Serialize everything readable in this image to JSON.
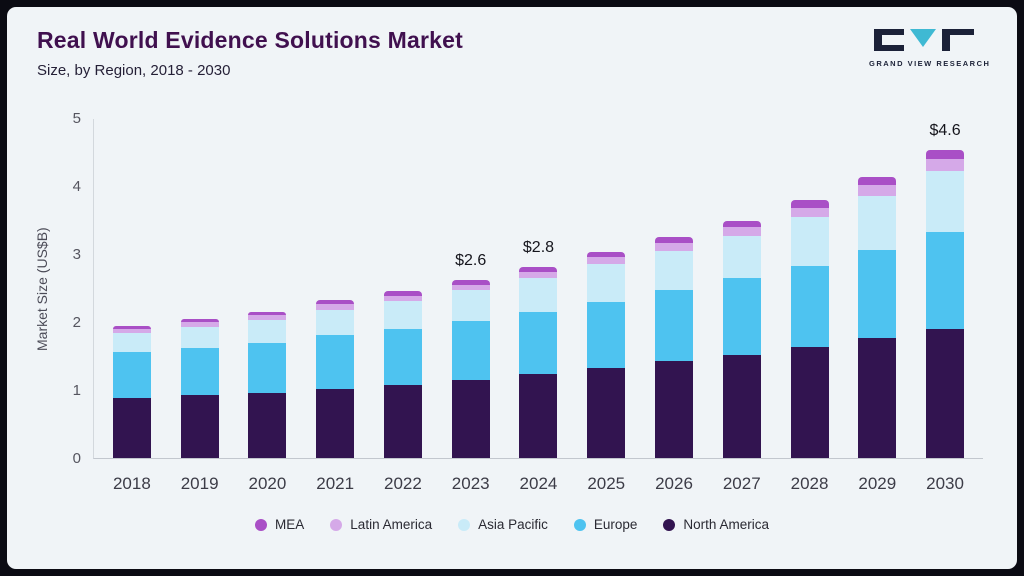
{
  "header": {
    "title": "Real World Evidence Solutions Market",
    "subtitle": "Size, by Region, 2018 - 2030",
    "logo_text": "GRAND VIEW RESEARCH"
  },
  "chart_data": {
    "type": "bar",
    "stacked": true,
    "title": "Real World Evidence Solutions Market Size, by Region, 2018 - 2030",
    "xlabel": "",
    "ylabel": "Market Size (US$B)",
    "ylim": [
      0,
      5
    ],
    "yticks": [
      0,
      1,
      2,
      3,
      4,
      5
    ],
    "grid": false,
    "legend_position": "bottom",
    "categories": [
      "2018",
      "2019",
      "2020",
      "2021",
      "2022",
      "2023",
      "2024",
      "2025",
      "2026",
      "2027",
      "2028",
      "2029",
      "2030"
    ],
    "series": [
      {
        "name": "North America",
        "color": "#321450",
        "values": [
          0.88,
          0.92,
          0.96,
          1.02,
          1.08,
          1.15,
          1.23,
          1.32,
          1.42,
          1.52,
          1.63,
          1.76,
          1.9
        ]
      },
      {
        "name": "Europe",
        "color": "#4EC3F0",
        "values": [
          0.68,
          0.7,
          0.73,
          0.79,
          0.82,
          0.87,
          0.92,
          0.98,
          1.05,
          1.12,
          1.2,
          1.3,
          1.42
        ]
      },
      {
        "name": "Asia Pacific",
        "color": "#C9EBF8",
        "values": [
          0.28,
          0.31,
          0.34,
          0.37,
          0.41,
          0.45,
          0.5,
          0.55,
          0.58,
          0.63,
          0.72,
          0.8,
          0.9
        ]
      },
      {
        "name": "Latin America",
        "color": "#D5A9E8",
        "values": [
          0.06,
          0.07,
          0.07,
          0.08,
          0.08,
          0.08,
          0.09,
          0.1,
          0.11,
          0.12,
          0.13,
          0.15,
          0.17
        ]
      },
      {
        "name": "MEA",
        "color": "#A94FC6",
        "values": [
          0.05,
          0.05,
          0.05,
          0.06,
          0.06,
          0.07,
          0.07,
          0.08,
          0.09,
          0.1,
          0.11,
          0.12,
          0.14
        ]
      }
    ],
    "annotations": [
      {
        "category": "2023",
        "text": "$2.6"
      },
      {
        "category": "2024",
        "text": "$2.8"
      },
      {
        "category": "2030",
        "text": "$4.6"
      }
    ],
    "legend": [
      "MEA",
      "Latin America",
      "Asia Pacific",
      "Europe",
      "North America"
    ]
  }
}
